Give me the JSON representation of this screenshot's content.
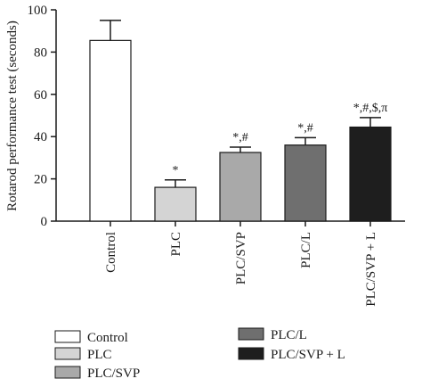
{
  "chart_data": {
    "type": "bar",
    "ylabel": "Rotarod performance test (seconds)",
    "ylim": [
      0,
      100
    ],
    "yticks": [
      0,
      20,
      40,
      60,
      80,
      100
    ],
    "categories": [
      "Control",
      "PLC",
      "PLC/SVP",
      "PLC/L",
      "PLC/SVP + L"
    ],
    "values": [
      85.5,
      16,
      32.5,
      36,
      44.5
    ],
    "errors": [
      9.5,
      3.5,
      2.5,
      3.5,
      4.5
    ],
    "annotations": [
      "",
      "*",
      "*,#",
      "*,#",
      "*,#,$,π"
    ],
    "colors": [
      "#ffffff",
      "#d4d4d4",
      "#a9a9a9",
      "#6f6f6f",
      "#1e1e1e"
    ],
    "grid": false,
    "legend_position": "bottom",
    "legend": [
      "Control",
      "PLC",
      "PLC/SVP",
      "PLC/L",
      "PLC/SVP + L"
    ]
  }
}
